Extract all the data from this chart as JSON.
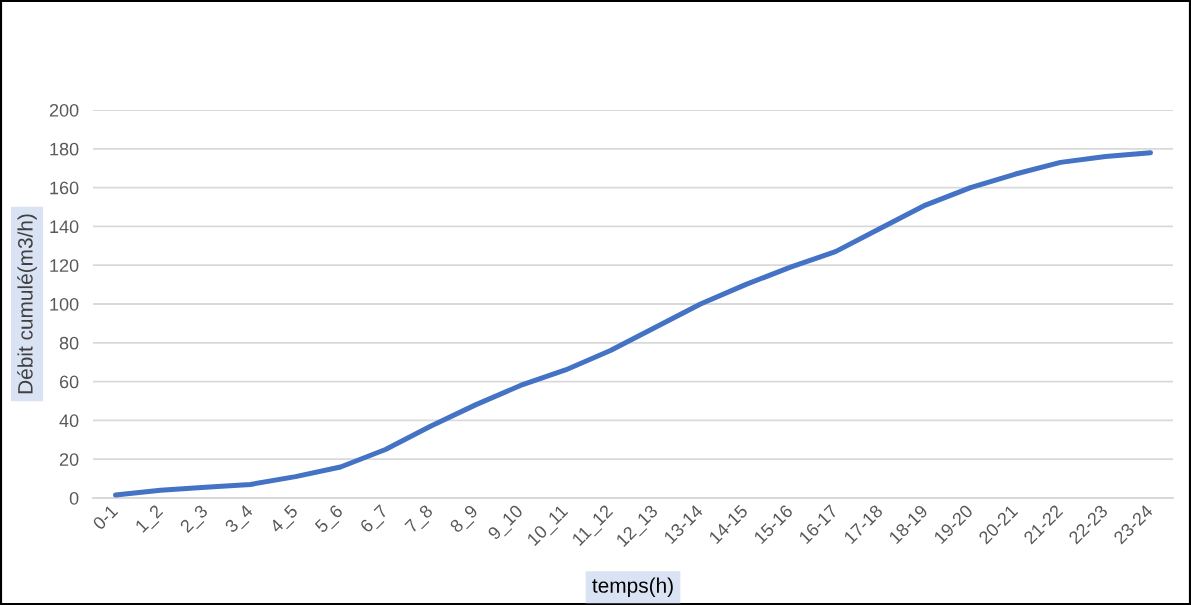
{
  "chart_data": {
    "type": "line",
    "xlabel": "temps(h)",
    "ylabel": "Débit cumulé(m3/h)",
    "categories": [
      "0-1",
      "1_2",
      "2_3",
      "3_4",
      "4_5",
      "5_6",
      "6_7",
      "7_8",
      "8_9",
      "9_10",
      "10_11",
      "11_12",
      "12_13",
      "13-14",
      "14-15",
      "15-16",
      "16-17",
      "17-18",
      "18-19",
      "19-20",
      "20-21",
      "21-22",
      "22-23",
      "23-24"
    ],
    "series": [
      {
        "color": "#4472c4",
        "values": [
          1.5,
          4,
          5.5,
          7,
          11,
          16,
          25,
          37,
          48,
          58,
          66,
          76,
          88,
          100,
          110,
          119,
          127,
          139,
          151,
          160,
          167,
          173,
          176,
          178
        ]
      }
    ],
    "ylim": [
      0,
      200
    ],
    "yticks": [
      0,
      20,
      40,
      60,
      80,
      100,
      120,
      140,
      160,
      180,
      200
    ],
    "grid": "y",
    "line_style": "solid"
  }
}
